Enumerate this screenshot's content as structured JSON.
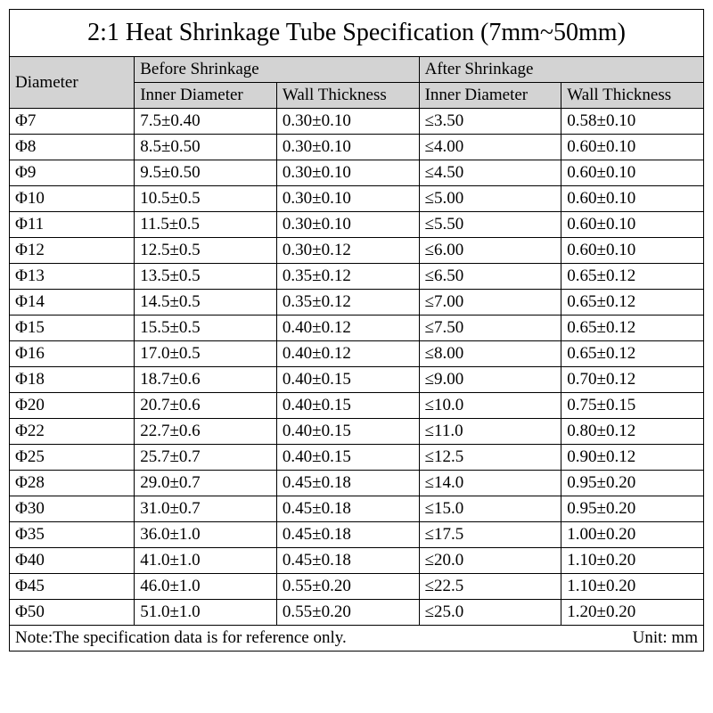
{
  "title": "2:1 Heat Shrinkage Tube Specification (7mm~50mm)",
  "colors": {
    "header_bg": "#d3d3d3",
    "background": "#ffffff",
    "border": "#000000",
    "text": "#000000"
  },
  "typography": {
    "title_fontsize": 28,
    "header_fontsize": 19,
    "body_fontsize": 19,
    "font_family": "Times New Roman"
  },
  "columns": {
    "diameter": "Diameter",
    "before": "Before Shrinkage",
    "after": "After Shrinkage",
    "inner_diameter": "Inner Diameter",
    "wall_thickness": "Wall Thickness"
  },
  "rows": [
    {
      "d": "Φ7",
      "bi": "7.5±0.40",
      "bw": "0.30±0.10",
      "ai": "≤3.50",
      "aw": "0.58±0.10"
    },
    {
      "d": "Φ8",
      "bi": "8.5±0.50",
      "bw": "0.30±0.10",
      "ai": "≤4.00",
      "aw": "0.60±0.10"
    },
    {
      "d": "Φ9",
      "bi": "9.5±0.50",
      "bw": "0.30±0.10",
      "ai": "≤4.50",
      "aw": "0.60±0.10"
    },
    {
      "d": "Φ10",
      "bi": "10.5±0.5",
      "bw": "0.30±0.10",
      "ai": "≤5.00",
      "aw": "0.60±0.10"
    },
    {
      "d": "Φ11",
      "bi": "11.5±0.5",
      "bw": "0.30±0.10",
      "ai": "≤5.50",
      "aw": "0.60±0.10"
    },
    {
      "d": "Φ12",
      "bi": "12.5±0.5",
      "bw": "0.30±0.12",
      "ai": "≤6.00",
      "aw": "0.60±0.10"
    },
    {
      "d": "Φ13",
      "bi": "13.5±0.5",
      "bw": "0.35±0.12",
      "ai": "≤6.50",
      "aw": "0.65±0.12"
    },
    {
      "d": "Φ14",
      "bi": "14.5±0.5",
      "bw": "0.35±0.12",
      "ai": "≤7.00",
      "aw": "0.65±0.12"
    },
    {
      "d": "Φ15",
      "bi": "15.5±0.5",
      "bw": "0.40±0.12",
      "ai": "≤7.50",
      "aw": "0.65±0.12"
    },
    {
      "d": "Φ16",
      "bi": "17.0±0.5",
      "bw": "0.40±0.12",
      "ai": "≤8.00",
      "aw": "0.65±0.12"
    },
    {
      "d": "Φ18",
      "bi": "18.7±0.6",
      "bw": "0.40±0.15",
      "ai": "≤9.00",
      "aw": "0.70±0.12"
    },
    {
      "d": "Φ20",
      "bi": "20.7±0.6",
      "bw": "0.40±0.15",
      "ai": "≤10.0",
      "aw": "0.75±0.15"
    },
    {
      "d": "Φ22",
      "bi": "22.7±0.6",
      "bw": "0.40±0.15",
      "ai": "≤11.0",
      "aw": "0.80±0.12"
    },
    {
      "d": "Φ25",
      "bi": "25.7±0.7",
      "bw": "0.40±0.15",
      "ai": "≤12.5",
      "aw": "0.90±0.12"
    },
    {
      "d": "Φ28",
      "bi": "29.0±0.7",
      "bw": "0.45±0.18",
      "ai": "≤14.0",
      "aw": "0.95±0.20"
    },
    {
      "d": "Φ30",
      "bi": "31.0±0.7",
      "bw": "0.45±0.18",
      "ai": "≤15.0",
      "aw": "0.95±0.20"
    },
    {
      "d": "Φ35",
      "bi": "36.0±1.0",
      "bw": "0.45±0.18",
      "ai": "≤17.5",
      "aw": "1.00±0.20"
    },
    {
      "d": "Φ40",
      "bi": "41.0±1.0",
      "bw": "0.45±0.18",
      "ai": "≤20.0",
      "aw": "1.10±0.20"
    },
    {
      "d": "Φ45",
      "bi": "46.0±1.0",
      "bw": "0.55±0.20",
      "ai": "≤22.5",
      "aw": "1.10±0.20"
    },
    {
      "d": "Φ50",
      "bi": "51.0±1.0",
      "bw": "0.55±0.20",
      "ai": "≤25.0",
      "aw": "1.20±0.20"
    }
  ],
  "note": {
    "text": "Note:The specification data is for reference only.",
    "unit": "Unit: mm"
  }
}
